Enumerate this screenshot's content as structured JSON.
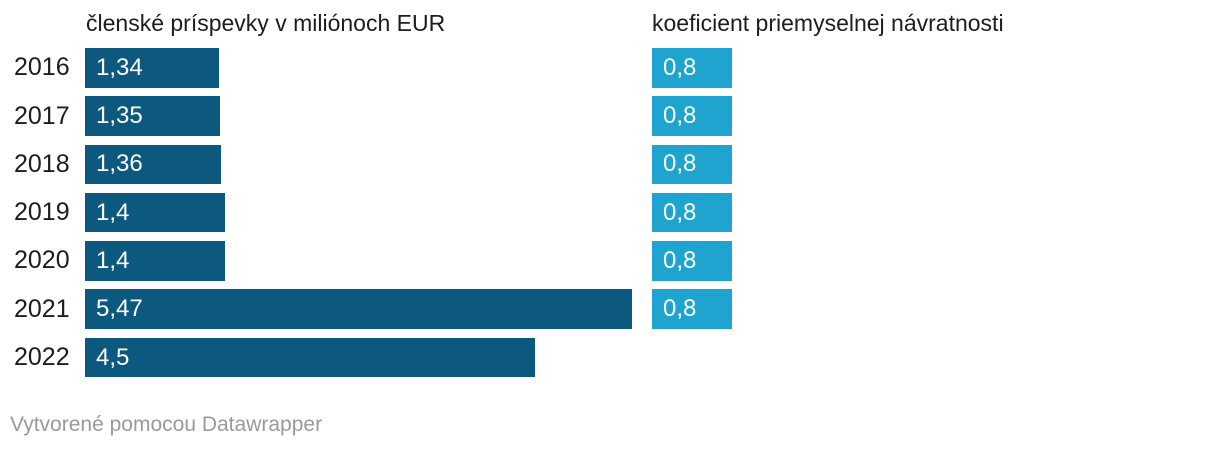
{
  "chart_data": {
    "type": "bar",
    "orientation": "horizontal",
    "categories": [
      "2016",
      "2017",
      "2018",
      "2019",
      "2020",
      "2021",
      "2022"
    ],
    "series": [
      {
        "name": "členské príspevky v miliónoch EUR",
        "color": "#0d587e",
        "values": [
          1.34,
          1.35,
          1.36,
          1.4,
          1.4,
          5.47,
          4.5
        ],
        "labels": [
          "1,34",
          "1,35",
          "1,36",
          "1,4",
          "1,4",
          "5,47",
          "4,5"
        ]
      },
      {
        "name": "koeficient priemyselnej návratnosti",
        "color": "#1ea4cf",
        "values": [
          0.8,
          0.8,
          0.8,
          0.8,
          0.8,
          0.8,
          null
        ],
        "labels": [
          "0,8",
          "0,8",
          "0,8",
          "0,8",
          "0,8",
          "0,8",
          null
        ]
      }
    ],
    "value_labels": "inside-start",
    "axis": "none",
    "grid": false,
    "legend": "column-headers"
  },
  "footer": {
    "attribution": "Vytvorené pomocou Datawrapper"
  }
}
